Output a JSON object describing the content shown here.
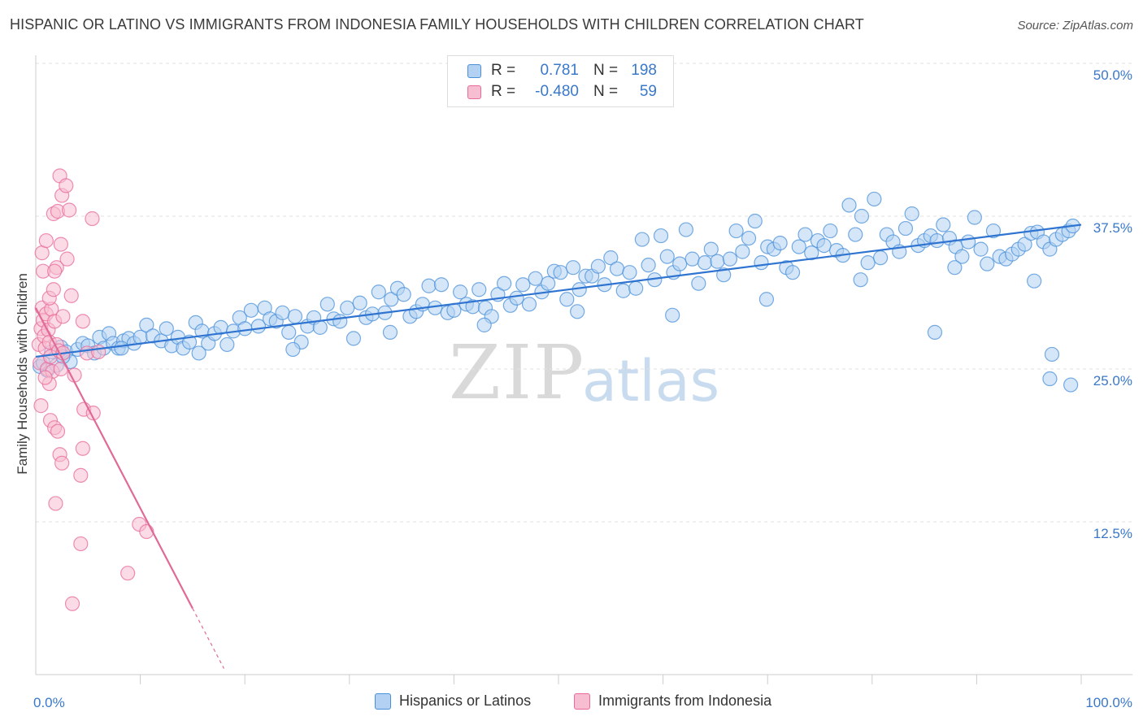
{
  "title": "HISPANIC OR LATINO VS IMMIGRANTS FROM INDONESIA FAMILY HOUSEHOLDS WITH CHILDREN CORRELATION CHART",
  "source": "Source: ZipAtlas.com",
  "watermark": {
    "zip": "ZIP",
    "atlas": "atlas"
  },
  "legend": {
    "series1": {
      "r_label": "R =",
      "r_value": "0.781",
      "n_label": "N =",
      "n_value": "198"
    },
    "series2": {
      "r_label": "R =",
      "r_value": "-0.480",
      "n_label": "N =",
      "n_value": "59"
    }
  },
  "bottom_legend": {
    "series1": "Hispanics or Latinos",
    "series2": "Immigrants from Indonesia"
  },
  "chart_data": {
    "type": "scatter",
    "xlabel": "",
    "ylabel": "Family Households with Children",
    "xlim": [
      0,
      100
    ],
    "ylim": [
      0,
      50
    ],
    "x_tick_labels": [
      "0.0%",
      "100.0%"
    ],
    "y_tick_values": [
      12.5,
      25.0,
      37.5,
      50.0
    ],
    "y_tick_labels": [
      "12.5%",
      "25.0%",
      "37.5%",
      "50.0%"
    ],
    "colors": {
      "blue": "#4a90d9",
      "blue_fill": "#b3d1f2",
      "blue_line": "#2f74d0",
      "pink": "#e86a9a",
      "pink_fill": "#f7bdd0",
      "pink_line": "#e06a96",
      "value_text": "#3a78c9"
    },
    "series": [
      {
        "name": "Hispanics or Latinos",
        "color": "blue",
        "trend": {
          "x0": 0,
          "y0": 26.0,
          "x1": 100,
          "y1": 36.8,
          "solid_to": 100
        },
        "points": [
          [
            0.4,
            25.2
          ],
          [
            0.7,
            25.5
          ],
          [
            1.1,
            24.9
          ],
          [
            1.5,
            26.4
          ],
          [
            2.0,
            25.3
          ],
          [
            2.4,
            26.8
          ],
          [
            2.9,
            26.4
          ],
          [
            3.3,
            25.6
          ],
          [
            4.0,
            26.6
          ],
          [
            4.5,
            27.1
          ],
          [
            5.0,
            26.9
          ],
          [
            5.6,
            26.3
          ],
          [
            6.1,
            27.6
          ],
          [
            6.5,
            26.7
          ],
          [
            7.0,
            27.9
          ],
          [
            7.4,
            27.1
          ],
          [
            7.9,
            26.7
          ],
          [
            8.4,
            27.3
          ],
          [
            8.9,
            27.5
          ],
          [
            9.4,
            27.1
          ],
          [
            10.0,
            27.6
          ],
          [
            10.6,
            28.6
          ],
          [
            11.2,
            27.7
          ],
          [
            12.0,
            27.3
          ],
          [
            12.5,
            28.3
          ],
          [
            13.0,
            26.9
          ],
          [
            13.6,
            27.6
          ],
          [
            14.1,
            26.7
          ],
          [
            14.7,
            27.2
          ],
          [
            15.3,
            28.8
          ],
          [
            15.9,
            28.1
          ],
          [
            16.5,
            27.1
          ],
          [
            17.1,
            27.9
          ],
          [
            17.7,
            28.4
          ],
          [
            18.3,
            27.0
          ],
          [
            18.9,
            28.1
          ],
          [
            19.5,
            29.2
          ],
          [
            20.0,
            28.3
          ],
          [
            20.6,
            29.8
          ],
          [
            21.3,
            28.5
          ],
          [
            21.9,
            30.0
          ],
          [
            22.4,
            29.1
          ],
          [
            23.0,
            28.9
          ],
          [
            23.6,
            29.6
          ],
          [
            24.2,
            28.0
          ],
          [
            24.8,
            29.3
          ],
          [
            25.4,
            27.2
          ],
          [
            26.0,
            28.5
          ],
          [
            26.6,
            29.2
          ],
          [
            27.2,
            28.4
          ],
          [
            27.9,
            30.3
          ],
          [
            28.5,
            29.1
          ],
          [
            29.1,
            28.9
          ],
          [
            29.8,
            30.0
          ],
          [
            30.4,
            27.5
          ],
          [
            31.0,
            30.4
          ],
          [
            31.6,
            29.2
          ],
          [
            32.2,
            29.5
          ],
          [
            32.8,
            31.3
          ],
          [
            33.4,
            29.6
          ],
          [
            34.0,
            30.7
          ],
          [
            34.6,
            31.6
          ],
          [
            35.2,
            31.1
          ],
          [
            35.8,
            29.3
          ],
          [
            36.4,
            29.7
          ],
          [
            37.0,
            30.3
          ],
          [
            37.6,
            31.8
          ],
          [
            38.2,
            30.0
          ],
          [
            38.8,
            31.9
          ],
          [
            39.4,
            29.6
          ],
          [
            40.0,
            29.8
          ],
          [
            40.6,
            31.3
          ],
          [
            41.2,
            30.3
          ],
          [
            41.8,
            30.1
          ],
          [
            42.4,
            31.5
          ],
          [
            43.0,
            30.0
          ],
          [
            43.6,
            29.3
          ],
          [
            44.2,
            31.1
          ],
          [
            44.8,
            32.0
          ],
          [
            45.4,
            30.2
          ],
          [
            46.0,
            30.8
          ],
          [
            46.6,
            31.9
          ],
          [
            47.2,
            30.3
          ],
          [
            47.8,
            32.4
          ],
          [
            48.4,
            31.3
          ],
          [
            49.0,
            32.0
          ],
          [
            49.6,
            33.0
          ],
          [
            50.2,
            32.9
          ],
          [
            50.8,
            30.7
          ],
          [
            51.4,
            33.3
          ],
          [
            52.0,
            31.5
          ],
          [
            52.6,
            32.6
          ],
          [
            53.2,
            32.6
          ],
          [
            53.8,
            33.4
          ],
          [
            54.4,
            31.9
          ],
          [
            55.0,
            34.1
          ],
          [
            55.6,
            33.2
          ],
          [
            56.2,
            31.4
          ],
          [
            56.8,
            32.9
          ],
          [
            57.4,
            31.6
          ],
          [
            58.0,
            35.6
          ],
          [
            58.6,
            33.5
          ],
          [
            59.2,
            32.3
          ],
          [
            59.8,
            35.9
          ],
          [
            60.4,
            34.2
          ],
          [
            61.0,
            32.9
          ],
          [
            61.6,
            33.6
          ],
          [
            62.2,
            36.4
          ],
          [
            62.8,
            34.0
          ],
          [
            63.4,
            32.0
          ],
          [
            64.0,
            33.7
          ],
          [
            64.6,
            34.8
          ],
          [
            65.2,
            33.8
          ],
          [
            65.8,
            32.7
          ],
          [
            66.4,
            34.0
          ],
          [
            67.0,
            36.3
          ],
          [
            67.6,
            34.6
          ],
          [
            68.2,
            35.7
          ],
          [
            68.8,
            37.1
          ],
          [
            69.4,
            33.7
          ],
          [
            70.0,
            35.0
          ],
          [
            70.6,
            34.8
          ],
          [
            71.2,
            35.3
          ],
          [
            71.8,
            33.3
          ],
          [
            72.4,
            32.9
          ],
          [
            73.0,
            35.0
          ],
          [
            73.6,
            36.0
          ],
          [
            74.2,
            34.5
          ],
          [
            74.8,
            35.5
          ],
          [
            75.4,
            35.1
          ],
          [
            76.0,
            36.3
          ],
          [
            76.6,
            34.7
          ],
          [
            77.2,
            34.3
          ],
          [
            77.8,
            38.4
          ],
          [
            78.4,
            36.0
          ],
          [
            79.0,
            37.5
          ],
          [
            79.6,
            33.7
          ],
          [
            80.2,
            38.9
          ],
          [
            80.8,
            34.1
          ],
          [
            81.4,
            36.0
          ],
          [
            82.0,
            35.4
          ],
          [
            82.6,
            34.6
          ],
          [
            83.2,
            36.5
          ],
          [
            83.8,
            37.7
          ],
          [
            84.4,
            35.1
          ],
          [
            85.0,
            35.5
          ],
          [
            85.6,
            35.9
          ],
          [
            86.2,
            35.5
          ],
          [
            86.8,
            36.8
          ],
          [
            87.4,
            35.7
          ],
          [
            88.0,
            35.0
          ],
          [
            88.6,
            34.2
          ],
          [
            89.2,
            35.4
          ],
          [
            89.8,
            37.4
          ],
          [
            90.4,
            34.8
          ],
          [
            91.0,
            33.6
          ],
          [
            91.6,
            36.3
          ],
          [
            92.2,
            34.2
          ],
          [
            92.8,
            34.0
          ],
          [
            93.4,
            34.4
          ],
          [
            94.0,
            34.8
          ],
          [
            94.6,
            35.2
          ],
          [
            95.2,
            36.1
          ],
          [
            95.8,
            36.2
          ],
          [
            96.4,
            35.4
          ],
          [
            97.0,
            34.8
          ],
          [
            97.6,
            35.6
          ],
          [
            98.2,
            36.0
          ],
          [
            98.8,
            36.3
          ],
          [
            99.2,
            36.7
          ],
          [
            2.6,
            26.0
          ],
          [
            8.2,
            26.7
          ],
          [
            15.6,
            26.3
          ],
          [
            24.6,
            26.6
          ],
          [
            33.9,
            28.0
          ],
          [
            42.9,
            28.6
          ],
          [
            51.8,
            29.7
          ],
          [
            60.9,
            29.4
          ],
          [
            69.9,
            30.7
          ],
          [
            78.9,
            32.3
          ],
          [
            87.9,
            33.3
          ],
          [
            95.5,
            32.2
          ],
          [
            97.2,
            26.2
          ],
          [
            97.0,
            24.2
          ],
          [
            99.0,
            23.7
          ],
          [
            86.0,
            28.0
          ]
        ]
      },
      {
        "name": "Immigrants from Indonesia",
        "color": "pink",
        "trend": {
          "x0": 0,
          "y0": 30.0,
          "x1": 18.0,
          "y1": 0.5,
          "solid_to": 15.0
        },
        "points": [
          [
            0.3,
            27.0
          ],
          [
            0.4,
            25.5
          ],
          [
            0.5,
            28.3
          ],
          [
            0.6,
            30.0
          ],
          [
            0.7,
            29.0
          ],
          [
            0.8,
            27.7
          ],
          [
            0.9,
            26.7
          ],
          [
            1.0,
            29.5
          ],
          [
            1.1,
            25.0
          ],
          [
            1.2,
            28.2
          ],
          [
            1.3,
            27.2
          ],
          [
            1.4,
            26.0
          ],
          [
            1.5,
            29.9
          ],
          [
            1.6,
            24.8
          ],
          [
            1.8,
            28.9
          ],
          [
            2.0,
            27.0
          ],
          [
            2.2,
            26.5
          ],
          [
            2.4,
            25.0
          ],
          [
            2.6,
            26.3
          ],
          [
            0.7,
            33.0
          ],
          [
            0.6,
            34.5
          ],
          [
            1.0,
            35.5
          ],
          [
            2.0,
            33.3
          ],
          [
            1.7,
            37.7
          ],
          [
            2.3,
            40.8
          ],
          [
            2.1,
            37.9
          ],
          [
            2.5,
            39.2
          ],
          [
            2.9,
            40.0
          ],
          [
            3.2,
            38.0
          ],
          [
            5.4,
            37.3
          ],
          [
            2.4,
            35.2
          ],
          [
            1.8,
            33.0
          ],
          [
            3.0,
            34.0
          ],
          [
            3.4,
            31.0
          ],
          [
            1.3,
            30.8
          ],
          [
            1.7,
            31.5
          ],
          [
            2.6,
            29.3
          ],
          [
            4.5,
            28.9
          ],
          [
            4.9,
            26.3
          ],
          [
            3.7,
            24.5
          ],
          [
            1.3,
            23.8
          ],
          [
            1.4,
            20.8
          ],
          [
            1.8,
            20.2
          ],
          [
            2.1,
            19.9
          ],
          [
            4.6,
            21.7
          ],
          [
            5.5,
            21.4
          ],
          [
            2.3,
            18.0
          ],
          [
            2.5,
            17.3
          ],
          [
            4.5,
            18.5
          ],
          [
            4.3,
            16.3
          ],
          [
            1.9,
            14.0
          ],
          [
            9.9,
            12.3
          ],
          [
            10.6,
            11.7
          ],
          [
            4.3,
            10.7
          ],
          [
            8.8,
            8.3
          ],
          [
            3.5,
            5.8
          ],
          [
            0.5,
            22.0
          ],
          [
            0.9,
            24.3
          ],
          [
            6.0,
            26.4
          ]
        ]
      }
    ]
  }
}
